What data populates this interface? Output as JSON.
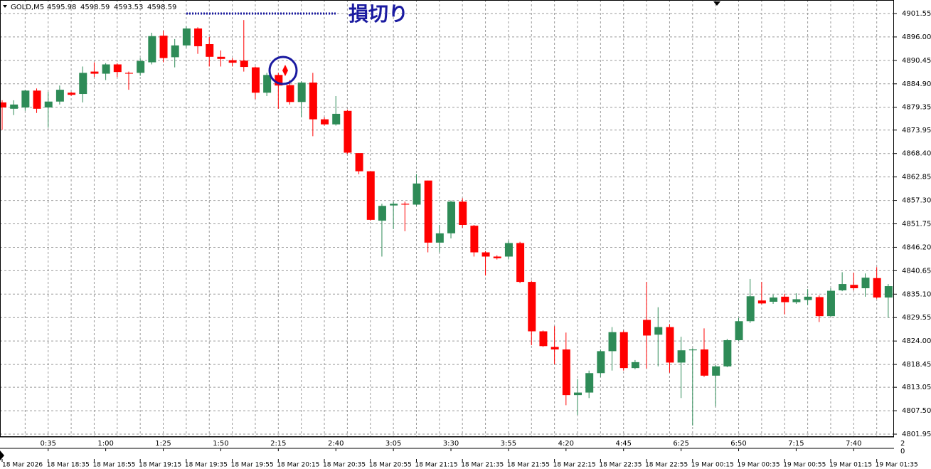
{
  "chart_data": {
    "type": "candlestick",
    "symbol": "GOLD,M5",
    "header_values": [
      4595.98,
      4598.59,
      4593.53,
      4598.59
    ],
    "annotation": "損切り",
    "up_color": "#2e8b57",
    "down_color": "#ff0000",
    "grid": true,
    "ylim": [
      4801.28,
      4904.75
    ],
    "yticks": [
      4901.55,
      {
        "value": 4896,
        "label": "4896.00"
      },
      4890.45,
      {
        "value": 4884.9,
        "label": "4884.90"
      },
      4879.35,
      4873.95,
      {
        "value": 4868.4,
        "label": "4868.40"
      },
      4862.85,
      {
        "value": 4857.3,
        "label": "4857.30"
      },
      4851.75,
      {
        "value": 4846.2,
        "label": "4846.20"
      },
      4840.65,
      {
        "value": 4835.1,
        "label": "4835.10"
      },
      4829.55,
      {
        "value": 4824,
        "label": "4824.00"
      },
      4818.45,
      4813.05,
      {
        "value": 4807.5,
        "label": "4807.50"
      },
      4801.95
    ],
    "sub_yticks": [
      2,
      0
    ],
    "categories": [
      "18 Mar 2026",
      null,
      null,
      null,
      "18 Mar 18:35",
      null,
      null,
      null,
      "18 Mar 18:55",
      null,
      null,
      null,
      "18 Mar 19:15",
      null,
      null,
      null,
      "18 Mar 19:35",
      null,
      null,
      null,
      "18 Mar 19:55",
      null,
      null,
      null,
      "18 Mar 20:15",
      null,
      null,
      null,
      "18 Mar 20:35",
      null,
      null,
      null,
      "18 Mar 20:55",
      null,
      null,
      null,
      "18 Mar 21:15",
      null,
      null,
      null,
      "18 Mar 21:35",
      null,
      null,
      null,
      "18 Mar 21:55",
      null,
      null,
      null,
      "18 Mar 22:15",
      null,
      null,
      null,
      "18 Mar 22:35",
      null,
      null,
      null,
      "18 Mar 22:55",
      null,
      null,
      null,
      "19 Mar 00:15",
      null,
      null,
      null,
      "19 Mar 00:35",
      null,
      null,
      null,
      "19 Mar 00:55",
      null,
      null,
      null,
      "19 Mar 01:15",
      null,
      null,
      null,
      "19 Mar 01:35",
      null
    ],
    "categories_top": [
      null,
      null,
      null,
      null,
      "0:35",
      null,
      null,
      null,
      null,
      "1:00",
      null,
      null,
      null,
      null,
      "1:25",
      null,
      null,
      null,
      null,
      "1:50",
      null,
      null,
      null,
      null,
      "2:15",
      null,
      null,
      null,
      null,
      "2:40",
      null,
      null,
      null,
      null,
      "3:05",
      null,
      null,
      null,
      null,
      "3:30",
      null,
      null,
      null,
      null,
      "3:55",
      null,
      null,
      null,
      null,
      "4:20",
      null,
      null,
      null,
      null,
      "4:45",
      null,
      null,
      null,
      null,
      "6:25",
      null,
      null,
      null,
      null,
      "6:50",
      null,
      null,
      null,
      null,
      "7:15",
      null,
      null,
      null,
      null,
      "7:40",
      null,
      null,
      null
    ],
    "open": [
      4880.5,
      4879,
      4879.3,
      4883.3,
      4879.3,
      4880.7,
      4882.8,
      4882.5,
      4887.8,
      4887.3,
      4889.5,
      4887.5,
      4887.5,
      4890,
      4896.3,
      4891.2,
      4894,
      4898,
      4894.3,
      4891.3,
      4890.5,
      4890.4,
      4888.8,
      4882.8,
      4887,
      4884.6,
      4880.6,
      4885.2,
      4876.5,
      4875.3,
      4878.5,
      4868.5,
      4864.2,
      4852.5,
      4856.1,
      4856.5,
      4856.3,
      4862,
      4847.3,
      4849.5,
      4857,
      4851.3,
      4845,
      4844,
      4844,
      4847.2,
      4838,
      4826.3,
      4822.6,
      4822,
      4811.2,
      4811.8,
      4816.4,
      4821.6,
      4826.1,
      4817.6,
      4829,
      4825.5,
      4827.3,
      4818.9,
      4821.8,
      4822,
      4815.8,
      4818,
      4824.2,
      4828.7,
      4833.6,
      4833.3,
      4834.5,
      4833.2,
      4833.7,
      4834.4,
      4829.9,
      4836,
      4837.3,
      4836.5,
      4838.9,
      4834.3
    ],
    "high": [
      4881,
      4881,
      4883.5,
      4883.8,
      4883,
      4884.5,
      4883,
      4889,
      4890,
      4889.8,
      4889.8,
      4887.8,
      4891,
      4897,
      4897.5,
      4895.5,
      4898.5,
      4898.3,
      4896,
      4892.8,
      4891,
      4900,
      4889,
      4887.5,
      4887.5,
      4885.8,
      4885.5,
      4887.5,
      4877,
      4882,
      4878.8,
      4868.5,
      4864.2,
      4856.5,
      4857,
      4857,
      4863.5,
      4862,
      4851.5,
      4857.3,
      4857.8,
      4851.5,
      4845.3,
      4844.3,
      4847.8,
      4847.5,
      4838.3,
      4826.5,
      4827.5,
      4826,
      4815,
      4817,
      4822,
      4827.3,
      4826.5,
      4819.5,
      4838,
      4832,
      4828,
      4825,
      4822.3,
      4827,
      4818.3,
      4824.5,
      4829.5,
      4838.7,
      4838,
      4835,
      4835.2,
      4835.3,
      4836.3,
      4834.8,
      4836.5,
      4840.3,
      4840.2,
      4840,
      4841.5,
      4837.5
    ],
    "low": [
      4874,
      4877.5,
      4878.5,
      4878,
      4874.5,
      4880,
      4882,
      4880.5,
      4886.5,
      4885.8,
      4886.5,
      4883.5,
      4886.8,
      4889.5,
      4890,
      4888.8,
      4893.5,
      4892,
      4889,
      4889,
      4889,
      4887.8,
      4881.3,
      4882,
      4879,
      4880,
      4877,
      4872.5,
      4875,
      4875,
      4868.3,
      4863.5,
      4852.5,
      4844,
      4850.5,
      4850,
      4856,
      4845,
      4845,
      4848.3,
      4850.8,
      4844,
      4839.5,
      4843.3,
      4843.3,
      4837.7,
      4823,
      4822.6,
      4818.5,
      4808.8,
      4806.5,
      4810.5,
      4815.5,
      4817,
      4817,
      4817.3,
      4817.5,
      4818,
      4816.5,
      4810.5,
      4804,
      4815.5,
      4808.5,
      4817.8,
      4824,
      4828.3,
      4832.7,
      4832.8,
      4830.3,
      4832.8,
      4832.5,
      4828.5,
      4829.8,
      4835.8,
      4836,
      4834.5,
      4834,
      4829.5
    ],
    "close": [
      4879.3,
      4880,
      4883.3,
      4879,
      4880.7,
      4883.5,
      4882.3,
      4887.5,
      4887.3,
      4889.5,
      4887.7,
      4887.3,
      4890.3,
      4896.2,
      4891,
      4894,
      4898,
      4893.8,
      4891.3,
      4890.8,
      4889.9,
      4888.9,
      4882.8,
      4887,
      4884.5,
      4880.6,
      4885.2,
      4876.5,
      4875.3,
      4877.8,
      4868.6,
      4864.2,
      4852.7,
      4856,
      4856.5,
      4856.3,
      4861.3,
      4847.3,
      4849.5,
      4857,
      4851.5,
      4845,
      4844,
      4843.6,
      4847.2,
      4838,
      4826.3,
      4822.8,
      4822,
      4811.2,
      4811.8,
      4816.4,
      4821.6,
      4826.1,
      4817.6,
      4819,
      4825.3,
      4827.3,
      4818.9,
      4821.8,
      4822,
      4815.8,
      4818,
      4824.2,
      4828.7,
      4834.6,
      4832.9,
      4834.3,
      4833.2,
      4833.9,
      4834.5,
      4829.9,
      4835.9,
      4837.5,
      4836.5,
      4839,
      4834.3,
      4837
    ]
  }
}
